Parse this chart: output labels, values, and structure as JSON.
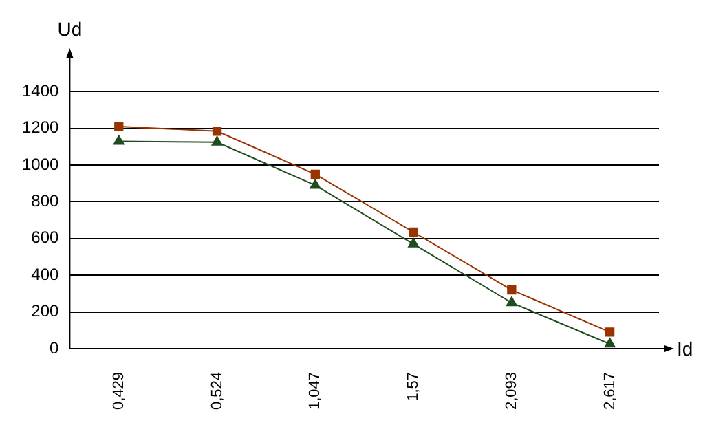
{
  "chart_data": {
    "type": "line",
    "xlabel": "Id",
    "ylabel": "Ud",
    "categories": [
      "0,429",
      "0,524",
      "1,047",
      "1,57",
      "2,093",
      "2,617"
    ],
    "series": [
      {
        "color": "#993300",
        "marker": "square",
        "values": [
          1210,
          1185,
          950,
          635,
          320,
          90
        ]
      },
      {
        "color": "#1f4d1f",
        "marker": "triangle",
        "values": [
          1130,
          1125,
          890,
          570,
          250,
          25
        ]
      }
    ],
    "ylim": [
      0,
      1600
    ],
    "yticks": [
      0,
      200,
      400,
      600,
      800,
      1000,
      1200,
      1400
    ],
    "grid": "y",
    "legend": false,
    "line_style": "solid"
  }
}
